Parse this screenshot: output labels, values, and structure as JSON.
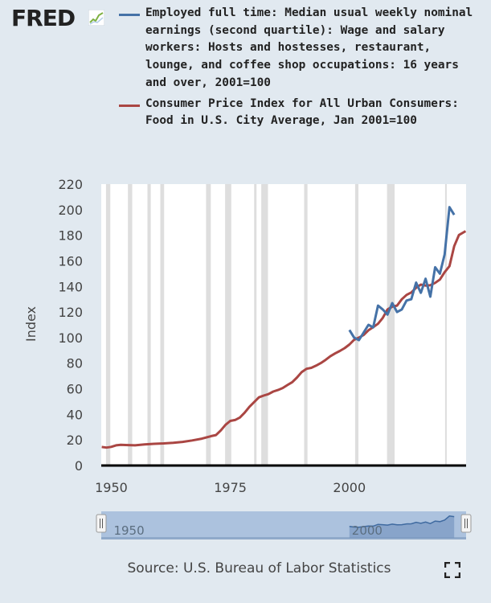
{
  "logo": {
    "text": "FRED"
  },
  "source": "Source: U.S. Bureau of Labor Statistics",
  "colors": {
    "background": "#e1e9f0",
    "plot": "#ffffff",
    "recession": "#dedede",
    "series_blue": "#4572a7",
    "series_red": "#aa4643",
    "navigator": "#a6bedb"
  },
  "icons": {
    "logo_mark": "chart-line-icon",
    "fullscreen": "fullscreen-icon",
    "handle": "grip-handle-icon"
  },
  "chart_data": {
    "type": "line",
    "ylabel": "Index",
    "ylim": [
      0,
      220
    ],
    "yticks": [
      "0",
      "20",
      "40",
      "60",
      "80",
      "100",
      "120",
      "140",
      "160",
      "180",
      "200",
      "220"
    ],
    "yticks_values": [
      0,
      20,
      40,
      60,
      80,
      100,
      120,
      140,
      160,
      180,
      200,
      220
    ],
    "xlim": [
      1947.9,
      2024.5
    ],
    "xticks": [
      "1950",
      "1975",
      "2000"
    ],
    "xticks_values": [
      1950,
      1975,
      2000
    ],
    "recessions": [
      [
        1948.9,
        1949.8
      ],
      [
        1953.5,
        1954.4
      ],
      [
        1957.6,
        1958.3
      ],
      [
        1960.3,
        1961.1
      ],
      [
        1969.9,
        1970.9
      ],
      [
        1973.9,
        1975.2
      ],
      [
        1980.0,
        1980.5
      ],
      [
        1981.5,
        1982.9
      ],
      [
        1990.5,
        1991.2
      ],
      [
        2001.2,
        2001.9
      ],
      [
        2007.9,
        2009.5
      ],
      [
        2020.1,
        2020.4
      ]
    ],
    "series": [
      {
        "name": "Employed full time: Median usual weekly nominal earnings (second quartile): Wage and salary workers: Hosts and hostesses, restaurant, lounge, and coffee shop occupations: 16 years and over, 2001=100",
        "color": "#4572a7",
        "x": [
          2000,
          2001,
          2002,
          2003,
          2004,
          2005,
          2006,
          2007,
          2008,
          2009,
          2010,
          2011,
          2012,
          2013,
          2014,
          2015,
          2016,
          2017,
          2018,
          2019,
          2020,
          2021,
          2022
        ],
        "values": [
          106,
          100,
          98,
          104,
          110,
          108,
          125,
          122,
          118,
          127,
          120,
          122,
          129,
          130,
          143,
          135,
          146,
          132,
          155,
          150,
          165,
          202,
          196
        ]
      },
      {
        "name": "Consumer Price Index for All Urban Consumers: Food in U.S. City Average, Jan 2001=100",
        "color": "#aa4643",
        "x": [
          1948,
          1949,
          1950,
          1951,
          1952,
          1953,
          1955,
          1957,
          1959,
          1961,
          1963,
          1965,
          1967,
          1969,
          1971,
          1972,
          1973,
          1974,
          1975,
          1976,
          1977,
          1978,
          1979,
          1980,
          1981,
          1982,
          1983,
          1984,
          1985,
          1986,
          1987,
          1988,
          1989,
          1990,
          1991,
          1992,
          1993,
          1994,
          1995,
          1996,
          1997,
          1998,
          1999,
          2000,
          2001,
          2002,
          2003,
          2004,
          2005,
          2006,
          2007,
          2008,
          2009,
          2010,
          2011,
          2012,
          2013,
          2014,
          2015,
          2016,
          2017,
          2018,
          2019,
          2020,
          2021,
          2022,
          2023,
          2024.4
        ],
        "values": [
          14.5,
          14,
          14.6,
          15.8,
          16.2,
          16,
          15.8,
          16.5,
          17,
          17.3,
          17.8,
          18.5,
          19.6,
          21,
          23,
          23.8,
          27.5,
          31.9,
          34.9,
          35.6,
          37.5,
          41.3,
          45.8,
          49.6,
          53.3,
          54.7,
          55.8,
          57.8,
          59,
          60.6,
          62.9,
          65.2,
          68.8,
          73.1,
          75.6,
          76.4,
          78.1,
          80.1,
          82.6,
          85.4,
          87.6,
          89.6,
          91.8,
          94.6,
          98.3,
          100,
          102.1,
          105.7,
          108.2,
          110.8,
          115.4,
          122,
          124.2,
          125,
          130,
          133.4,
          135.3,
          139,
          141.4,
          140.7,
          141,
          142.8,
          145.4,
          151.1,
          155.8,
          171.5,
          180.2,
          183.2
        ]
      }
    ],
    "navigator": {
      "labels": [
        "1950",
        "2000"
      ]
    }
  }
}
